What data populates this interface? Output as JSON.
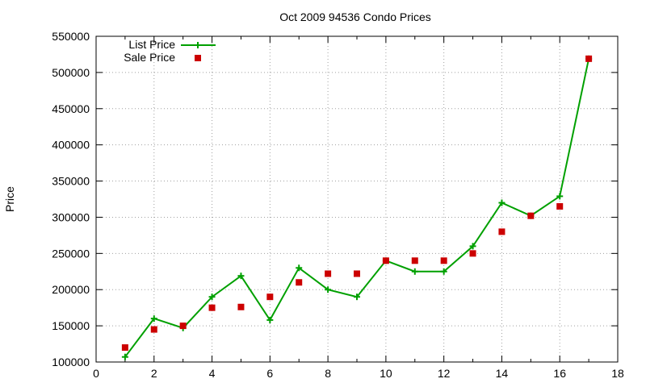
{
  "chart_data": {
    "type": "line",
    "title": "Oct 2009 94536 Condo Prices",
    "xlabel": "",
    "ylabel": "Price",
    "xlim": [
      0,
      18
    ],
    "ylim": [
      100000,
      550000
    ],
    "xticks": [
      "0",
      "2",
      "4",
      "6",
      "8",
      "10",
      "12",
      "14",
      "16",
      "18"
    ],
    "yticks": [
      "100000",
      "150000",
      "200000",
      "250000",
      "300000",
      "350000",
      "400000",
      "450000",
      "500000",
      "550000"
    ],
    "grid": true,
    "legend_position": "top-left",
    "series": [
      {
        "name": "List Price",
        "style": "line-with-plus-markers",
        "color": "#00a000",
        "x": [
          1,
          2,
          3,
          4,
          5,
          6,
          7,
          8,
          9,
          10,
          11,
          12,
          13,
          14,
          15,
          16,
          17
        ],
        "values": [
          107000,
          160000,
          147000,
          190000,
          219000,
          158000,
          230000,
          200000,
          190000,
          240000,
          225000,
          225000,
          260000,
          320000,
          302000,
          329000,
          519000
        ]
      },
      {
        "name": "Sale Price",
        "style": "square-markers",
        "color": "#cc0000",
        "x": [
          1,
          2,
          3,
          4,
          5,
          6,
          7,
          8,
          9,
          10,
          11,
          12,
          13,
          14,
          15,
          16,
          17
        ],
        "values": [
          120000,
          145000,
          150000,
          175000,
          176000,
          190000,
          210000,
          222000,
          222000,
          240000,
          240000,
          240000,
          250000,
          280000,
          302000,
          315000,
          519000
        ]
      }
    ]
  }
}
